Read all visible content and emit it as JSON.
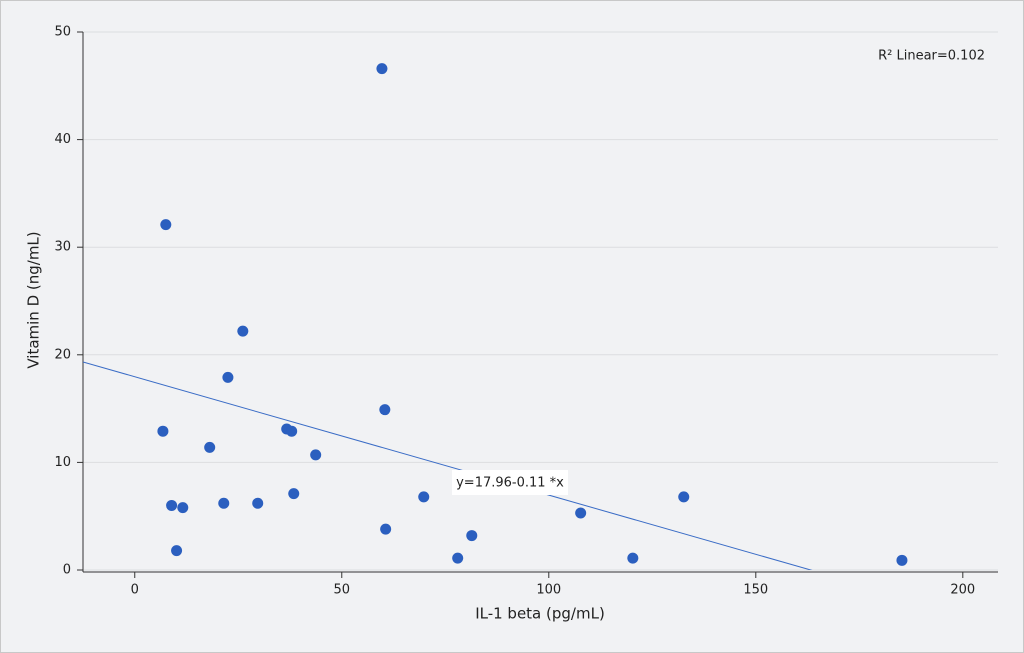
{
  "chart_data": {
    "type": "scatter",
    "x_label": "IL-1 beta (pg/mL)",
    "y_label": "Vitamin D (ng/mL)",
    "annotation": "R² Linear=0.102",
    "color": "#2b5fbf",
    "grid": true,
    "xlim": [
      -12.5,
      208.5
    ],
    "xticks": [
      0,
      50,
      100,
      150,
      200
    ],
    "ylim": [
      0,
      50
    ],
    "yticks": [
      0,
      10,
      20,
      30,
      40,
      50
    ],
    "x": [
      59.7,
      7.5,
      26.1,
      22.5,
      60.4,
      6.8,
      36.7,
      37.9,
      18.1,
      43.7,
      8.9,
      11.6,
      21.5,
      29.7,
      38.4,
      69.8,
      60.6,
      81.4,
      78.0,
      10.1,
      107.7,
      132.6,
      120.3,
      185.3
    ],
    "values": [
      46.6,
      32.1,
      22.2,
      17.9,
      14.9,
      12.9,
      13.1,
      12.9,
      11.4,
      10.7,
      6.0,
      5.8,
      6.2,
      6.2,
      7.1,
      6.8,
      3.8,
      3.2,
      1.1,
      1.8,
      5.3,
      6.8,
      1.1,
      0.9
    ],
    "fit": {
      "intercept": 17.96,
      "slope": -0.11,
      "label": "y=17.96-0.11 *x",
      "color": "#3a6cc6"
    }
  }
}
